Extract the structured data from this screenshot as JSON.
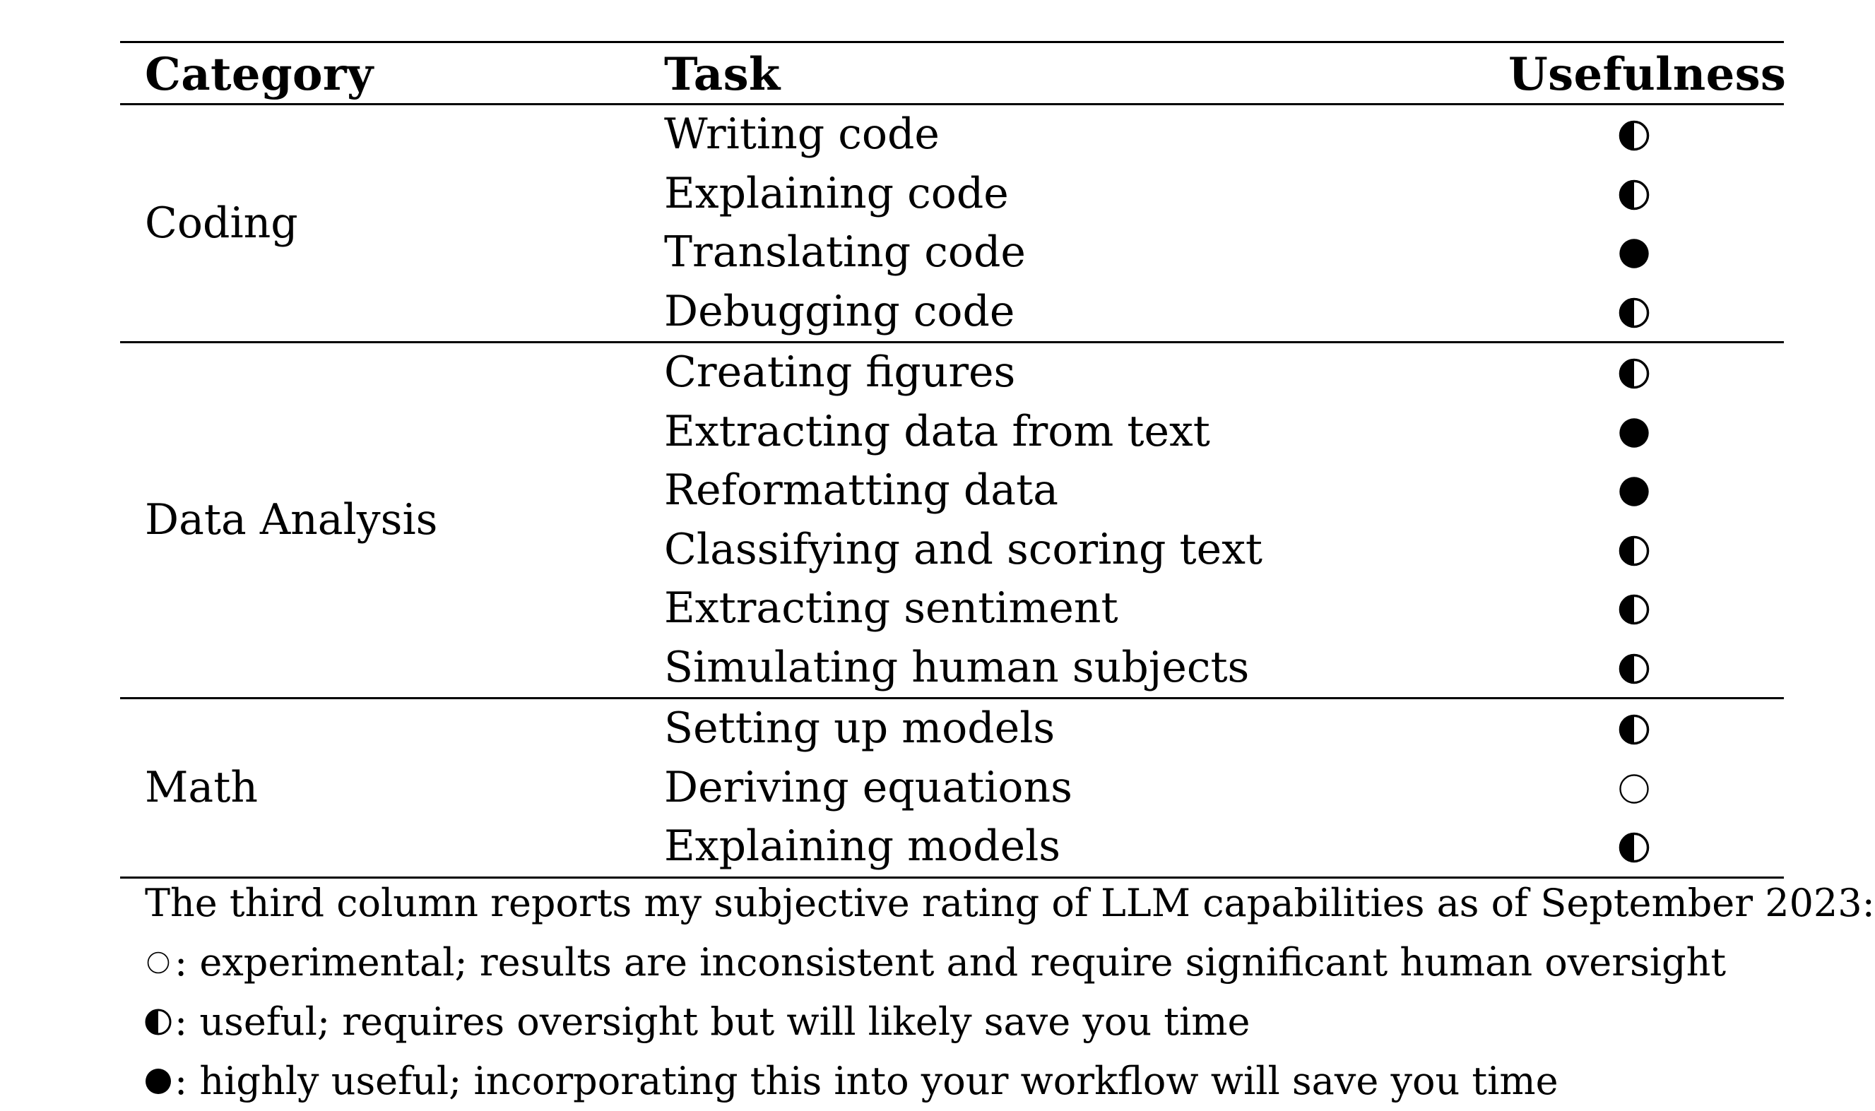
{
  "header": {
    "category": "Category",
    "task": "Task",
    "usefulness": "Usefulness"
  },
  "groups": [
    {
      "category": "Coding",
      "rows": [
        {
          "task": "Writing code",
          "rating": "half"
        },
        {
          "task": "Explaining code",
          "rating": "half"
        },
        {
          "task": "Translating code",
          "rating": "full"
        },
        {
          "task": "Debugging code",
          "rating": "half"
        }
      ]
    },
    {
      "category": "Data Analysis",
      "rows": [
        {
          "task": "Creating figures",
          "rating": "half"
        },
        {
          "task": "Extracting data from text",
          "rating": "full"
        },
        {
          "task": "Reformatting data",
          "rating": "full"
        },
        {
          "task": "Classifying and scoring text",
          "rating": "half"
        },
        {
          "task": "Extracting sentiment",
          "rating": "half"
        },
        {
          "task": "Simulating human subjects",
          "rating": "half"
        }
      ]
    },
    {
      "category": "Math",
      "rows": [
        {
          "task": "Setting up models",
          "rating": "half"
        },
        {
          "task": "Deriving equations",
          "rating": "empty"
        },
        {
          "task": "Explaining models",
          "rating": "half"
        }
      ]
    }
  ],
  "legend": {
    "intro": "The third column reports my subjective rating of LLM capabilities as of September 2023:",
    "items": [
      {
        "rating": "empty",
        "text": ": experimental; results are inconsistent and require significant human oversight"
      },
      {
        "rating": "half",
        "text": ": useful; requires oversight but will likely save you time"
      },
      {
        "rating": "full",
        "text": ": highly useful; incorporating this into your workflow will save you time"
      }
    ]
  },
  "icons": {
    "empty": "empty-circle-icon",
    "half": "half-filled-circle-icon",
    "full": "filled-circle-icon"
  },
  "colors": {
    "ink": "#000000",
    "background": "#ffffff"
  }
}
